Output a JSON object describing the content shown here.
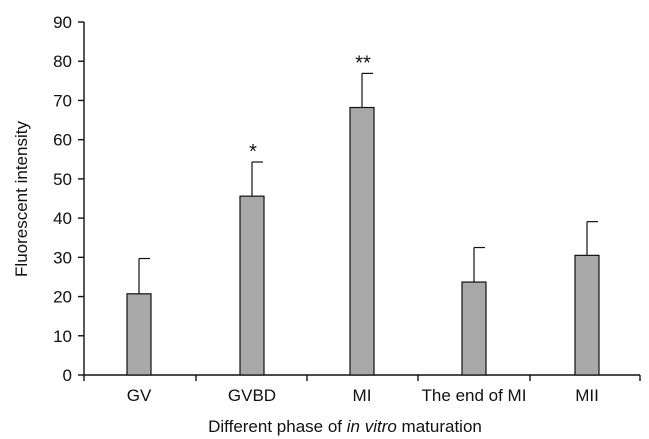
{
  "chart_data": {
    "type": "bar",
    "title": "",
    "xlabel_parts": [
      {
        "text": "Different phase of ",
        "italic": false
      },
      {
        "text": "in vitro",
        "italic": true
      },
      {
        "text": " maturation",
        "italic": false
      }
    ],
    "ylabel": "Fluorescent intensity",
    "ylim": [
      0,
      90
    ],
    "yticks": [
      0,
      10,
      20,
      30,
      40,
      50,
      60,
      70,
      80,
      90
    ],
    "categories": [
      "GV",
      "GVBD",
      "MI",
      "The end of MI",
      "MII"
    ],
    "values": [
      20.7,
      45.6,
      68.2,
      23.7,
      30.5
    ],
    "error_upper": [
      9.0,
      8.7,
      8.7,
      8.8,
      8.6
    ],
    "significance": [
      "",
      "*",
      "**",
      "",
      ""
    ],
    "grid": false,
    "bar_color": "#a8a8a8",
    "bar_edge_color": "#111111"
  }
}
